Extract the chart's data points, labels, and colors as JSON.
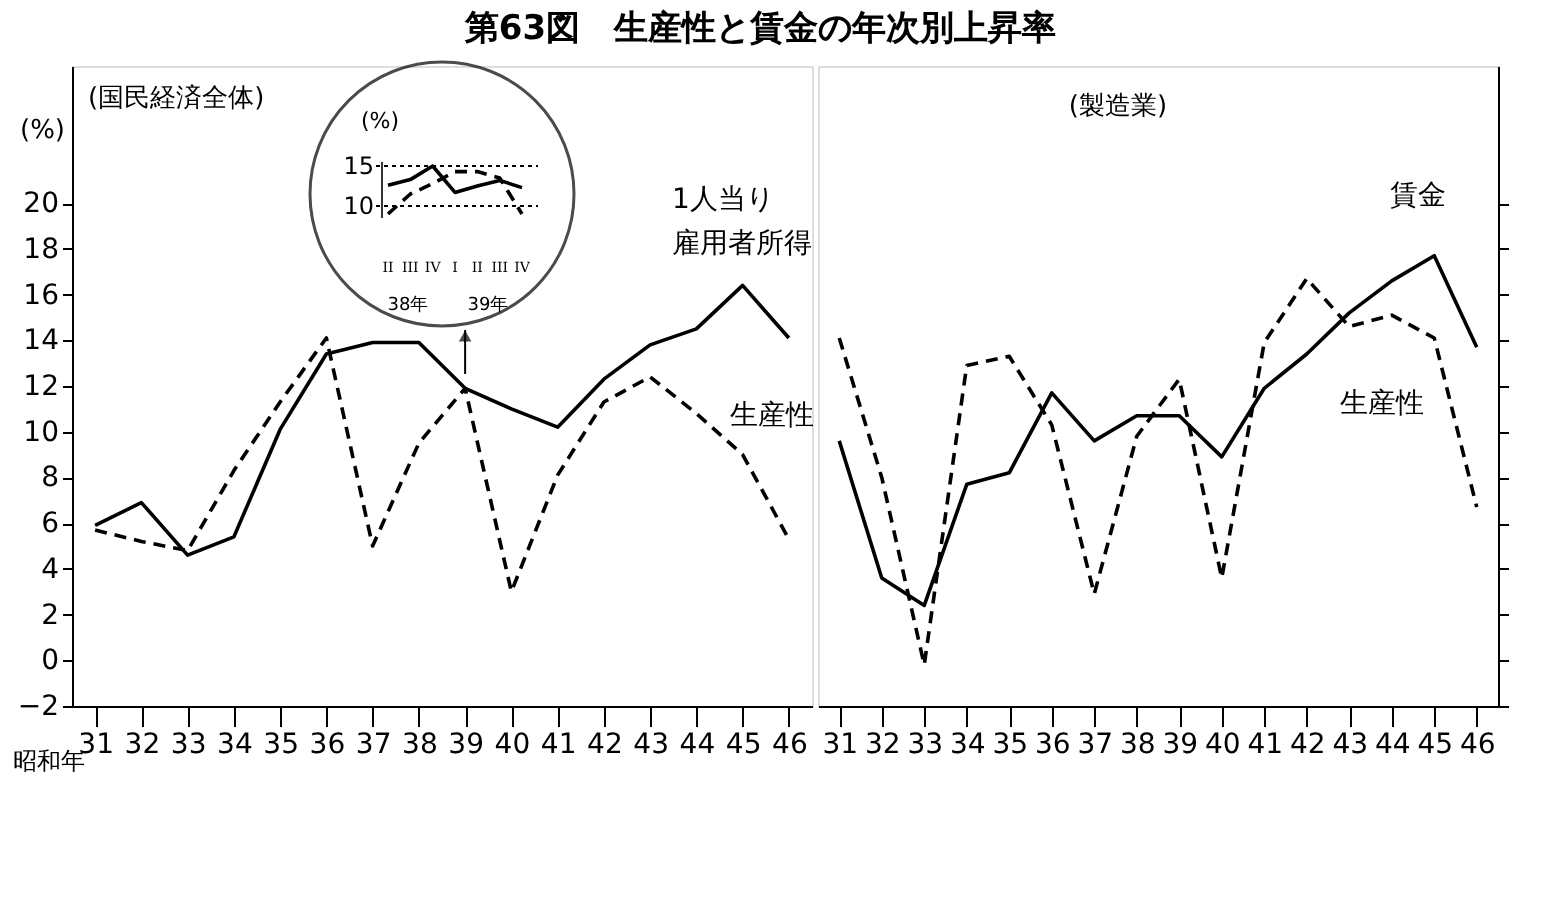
{
  "chart_data": [
    {
      "type": "line",
      "title": "第63図　生産性と賃金の年次別上昇率",
      "subtitle": "(国民経済全体)",
      "ylabel": "(%)",
      "xlabel": "昭和年",
      "categories": [
        "31",
        "32",
        "33",
        "34",
        "35",
        "36",
        "37",
        "38",
        "39",
        "40",
        "41",
        "42",
        "43",
        "44",
        "45",
        "46"
      ],
      "ylim": [
        -2,
        26
      ],
      "yticks": [
        -2,
        0,
        2,
        4,
        6,
        8,
        10,
        12,
        14,
        16,
        18,
        20
      ],
      "grid": false,
      "series": [
        {
          "name": "1人当り雇用者所得",
          "color": "#000000",
          "line_style": "solid",
          "values": [
            5.9,
            6.9,
            4.6,
            5.4,
            10.1,
            13.4,
            13.9,
            13.9,
            11.9,
            11.0,
            10.2,
            12.3,
            13.8,
            14.5,
            16.4,
            14.1
          ]
        },
        {
          "name": "生産性",
          "color": "#000000",
          "line_style": "dashed",
          "values": [
            5.7,
            5.2,
            4.8,
            8.3,
            11.3,
            14.1,
            5.0,
            9.5,
            11.9,
            3.0,
            8.1,
            11.3,
            12.4,
            10.8,
            9.0,
            5.3
          ]
        }
      ]
    },
    {
      "type": "line",
      "ylabel": "(%)",
      "categories": [
        "II",
        "III",
        "IV",
        "I",
        "II",
        "III",
        "IV"
      ],
      "ylim": [
        8.5,
        15.5
      ],
      "yticks": [
        10,
        15
      ],
      "grid": "y",
      "annotations": [
        "38年",
        "39年"
      ],
      "series": [
        {
          "color": "#000000",
          "line_style": "solid",
          "values": [
            12.6,
            13.3,
            15.0,
            11.7,
            12.5,
            13.2,
            12.3
          ]
        },
        {
          "color": "#000000",
          "line_style": "dashed",
          "values": [
            9.0,
            11.5,
            12.8,
            14.3,
            14.3,
            13.5,
            9.0
          ]
        }
      ]
    },
    {
      "type": "line",
      "subtitle": "(製造業)",
      "categories": [
        "31",
        "32",
        "33",
        "34",
        "35",
        "36",
        "37",
        "38",
        "39",
        "40",
        "41",
        "42",
        "43",
        "44",
        "45",
        "46"
      ],
      "ylim": [
        -2,
        26
      ],
      "yticks": [
        -2,
        0,
        2,
        4,
        6,
        8,
        10,
        12,
        14,
        16,
        18,
        20
      ],
      "tick_labels": "x",
      "grid": false,
      "series": [
        {
          "name": "賃金",
          "color": "#000000",
          "line_style": "solid",
          "values": [
            9.6,
            3.6,
            2.4,
            7.7,
            8.2,
            11.7,
            9.6,
            10.7,
            10.7,
            8.9,
            11.9,
            13.4,
            15.2,
            16.6,
            17.7,
            13.7
          ]
        },
        {
          "name": "生産性",
          "color": "#000000",
          "line_style": "dashed",
          "values": [
            14.1,
            8.0,
            -0.2,
            12.9,
            13.3,
            10.3,
            2.9,
            9.8,
            12.3,
            3.6,
            13.9,
            16.7,
            14.6,
            15.1,
            14.1,
            6.7
          ]
        }
      ]
    }
  ]
}
